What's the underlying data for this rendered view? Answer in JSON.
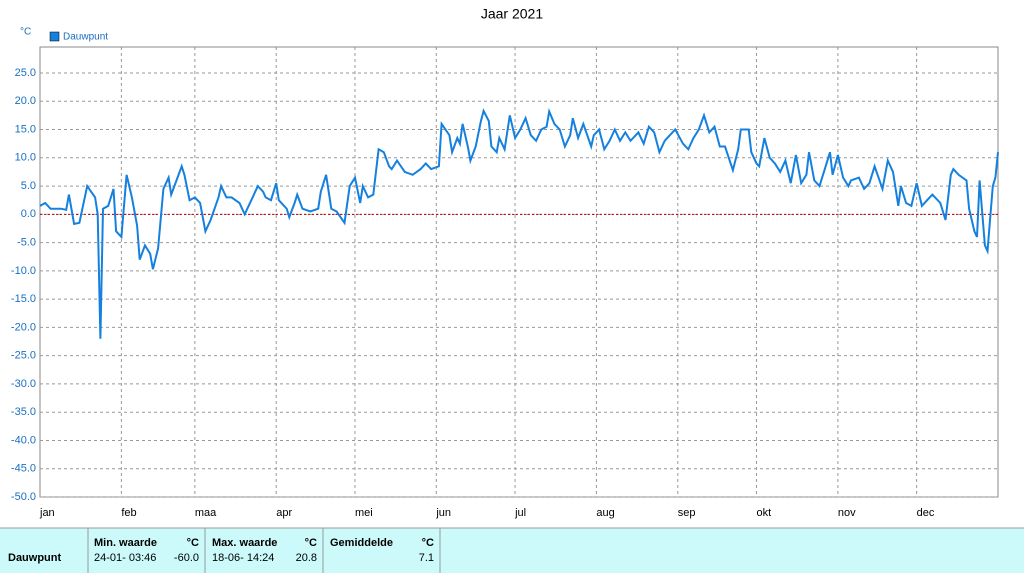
{
  "chart_data": {
    "type": "line",
    "title": "Jaar 2021",
    "y_unit": "°C",
    "grid": true,
    "zero_line": true,
    "xlim": [
      0,
      365
    ],
    "xticks": [
      {
        "value": 0,
        "label": "jan"
      },
      {
        "value": 31,
        "label": "feb"
      },
      {
        "value": 59,
        "label": "maa"
      },
      {
        "value": 90,
        "label": "apr"
      },
      {
        "value": 120,
        "label": "mei"
      },
      {
        "value": 151,
        "label": "jun"
      },
      {
        "value": 181,
        "label": "jul"
      },
      {
        "value": 212,
        "label": "aug"
      },
      {
        "value": 243,
        "label": "sep"
      },
      {
        "value": 273,
        "label": "okt"
      },
      {
        "value": 304,
        "label": "nov"
      },
      {
        "value": 334,
        "label": "dec"
      }
    ],
    "ylim": [
      -50,
      29.6
    ],
    "yticks": [
      {
        "value": 25,
        "label": "25.0"
      },
      {
        "value": 20,
        "label": "20.0"
      },
      {
        "value": 15,
        "label": "15.0"
      },
      {
        "value": 10,
        "label": "10.0"
      },
      {
        "value": 5,
        "label": "5.0"
      },
      {
        "value": 0,
        "label": "0.0"
      },
      {
        "value": -5,
        "label": "-5.0"
      },
      {
        "value": -10,
        "label": "-10.0"
      },
      {
        "value": -15,
        "label": "-15.0"
      },
      {
        "value": -20,
        "label": "-20.0"
      },
      {
        "value": -25,
        "label": "-25.0"
      },
      {
        "value": -30,
        "label": "-30.0"
      },
      {
        "value": -35,
        "label": "-35.0"
      },
      {
        "value": -40,
        "label": "-40.0"
      },
      {
        "value": -45,
        "label": "-45.0"
      },
      {
        "value": -50,
        "label": "-50.0"
      }
    ],
    "series": [
      {
        "name": "Dauwpunt",
        "color": "#1580de",
        "x": [
          0,
          2,
          4,
          8,
          10,
          11,
          13,
          15,
          18,
          21,
          22,
          23,
          24,
          26,
          28,
          29,
          31,
          33,
          35,
          37,
          38,
          40,
          42,
          43,
          45,
          47,
          49,
          50,
          52,
          54,
          55,
          57,
          59,
          61,
          63,
          65,
          68,
          69,
          71,
          73,
          76,
          78,
          81,
          83,
          85,
          86,
          88,
          90,
          91,
          94,
          95,
          97,
          98,
          100,
          103,
          106,
          107,
          109,
          111,
          113,
          116,
          118,
          120,
          122,
          123,
          125,
          127,
          129,
          131,
          133,
          134,
          136,
          139,
          142,
          145,
          147,
          149,
          152,
          153,
          156,
          157,
          159,
          160,
          161,
          163,
          164,
          166,
          168,
          169,
          171,
          172,
          174,
          175,
          177,
          179,
          181,
          183,
          185,
          187,
          189,
          191,
          193,
          194,
          196,
          198,
          200,
          202,
          203,
          205,
          207,
          210,
          211,
          213,
          215,
          217,
          219,
          221,
          223,
          225,
          228,
          230,
          232,
          234,
          236,
          238,
          240,
          242,
          245,
          247,
          249,
          251,
          253,
          255,
          257,
          259,
          261,
          264,
          266,
          267,
          270,
          271,
          273,
          274,
          276,
          278,
          280,
          282,
          284,
          286,
          288,
          290,
          292,
          293,
          295,
          297,
          299,
          301,
          302,
          304,
          306,
          308,
          309,
          312,
          314,
          316,
          318,
          321,
          323,
          325,
          327,
          328,
          330,
          332,
          334,
          336,
          338,
          340,
          343,
          345,
          347,
          348,
          350,
          353,
          354,
          356,
          357,
          358,
          360,
          361,
          363,
          364,
          365
        ],
        "values": [
          1.5,
          2,
          1,
          1,
          0.8,
          3.5,
          -1.7,
          -1.5,
          5,
          3,
          0,
          -22,
          1,
          1.5,
          4.5,
          -3,
          -4,
          7,
          3,
          -2,
          -8,
          -5.5,
          -7,
          -9.7,
          -6,
          4.5,
          6.5,
          3.5,
          6,
          8.5,
          7,
          2.5,
          3,
          2,
          -3,
          -1,
          3,
          5,
          3,
          3,
          2,
          0,
          3,
          5,
          4,
          3,
          2.5,
          5.5,
          2.5,
          1,
          -0.5,
          2,
          3.5,
          1,
          0.5,
          1,
          4,
          7,
          1,
          0.5,
          -1.5,
          5,
          6.5,
          2,
          5,
          3,
          3.5,
          11.5,
          11,
          8.5,
          8,
          9.5,
          7.5,
          7,
          8,
          9,
          8,
          8.5,
          16,
          14,
          11,
          13.5,
          12.5,
          16,
          12,
          9.5,
          12,
          16.5,
          18.3,
          16.5,
          12,
          11,
          13.5,
          11.5,
          17.5,
          13.5,
          15,
          17,
          14,
          13,
          15,
          15.5,
          18.2,
          16,
          15,
          12,
          14,
          17,
          13.5,
          16,
          12,
          14,
          15,
          11.5,
          13,
          15,
          13,
          14.5,
          13,
          14.5,
          12.5,
          15.5,
          14.5,
          11,
          13,
          14,
          15,
          12.5,
          11.5,
          13.5,
          15,
          17.5,
          14.5,
          15.5,
          12,
          12,
          7.8,
          11.5,
          15,
          15,
          11,
          9,
          8.5,
          13.5,
          10,
          9,
          7.5,
          9.5,
          5.5,
          10.5,
          5.5,
          7,
          11,
          6,
          5,
          8,
          11,
          7,
          10.5,
          6.5,
          5,
          6,
          6.5,
          4.5,
          5.5,
          8.5,
          4.5,
          9.5,
          7.5,
          1.5,
          5,
          2,
          1.5,
          5.5,
          1.5,
          2.5,
          3.5,
          2,
          -1,
          7,
          8,
          7,
          6,
          1,
          -3,
          -4,
          6,
          -5.5,
          -6.5,
          5,
          6.5,
          11
        ]
      }
    ]
  },
  "table": {
    "headers": [
      "Min. waarde",
      "°C",
      "Max. waarde",
      "°C",
      "Gemiddelde",
      "°C"
    ],
    "rows": [
      [
        "Dauwpunt",
        "24-01- 03:46",
        "-60.0",
        "18-06- 14:24",
        "20.8",
        "7.1"
      ]
    ]
  }
}
